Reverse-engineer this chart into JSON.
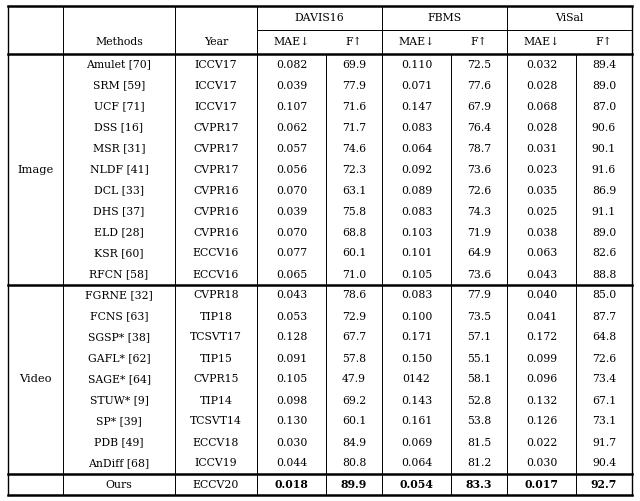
{
  "row_groups": [
    {
      "group_label": "Image",
      "rows": [
        [
          "Amulet [70]",
          "ICCV17",
          "0.082",
          "69.9",
          "0.110",
          "72.5",
          "0.032",
          "89.4"
        ],
        [
          "SRM [59]",
          "ICCV17",
          "0.039",
          "77.9",
          "0.071",
          "77.6",
          "0.028",
          "89.0"
        ],
        [
          "UCF [71]",
          "ICCV17",
          "0.107",
          "71.6",
          "0.147",
          "67.9",
          "0.068",
          "87.0"
        ],
        [
          "DSS [16]",
          "CVPR17",
          "0.062",
          "71.7",
          "0.083",
          "76.4",
          "0.028",
          "90.6"
        ],
        [
          "MSR [31]",
          "CVPR17",
          "0.057",
          "74.6",
          "0.064",
          "78.7",
          "0.031",
          "90.1"
        ],
        [
          "NLDF [41]",
          "CVPR17",
          "0.056",
          "72.3",
          "0.092",
          "73.6",
          "0.023",
          "91.6"
        ],
        [
          "DCL [33]",
          "CVPR16",
          "0.070",
          "63.1",
          "0.089",
          "72.6",
          "0.035",
          "86.9"
        ],
        [
          "DHS [37]",
          "CVPR16",
          "0.039",
          "75.8",
          "0.083",
          "74.3",
          "0.025",
          "91.1"
        ],
        [
          "ELD [28]",
          "CVPR16",
          "0.070",
          "68.8",
          "0.103",
          "71.9",
          "0.038",
          "89.0"
        ],
        [
          "KSR [60]",
          "ECCV16",
          "0.077",
          "60.1",
          "0.101",
          "64.9",
          "0.063",
          "82.6"
        ],
        [
          "RFCN [58]",
          "ECCV16",
          "0.065",
          "71.0",
          "0.105",
          "73.6",
          "0.043",
          "88.8"
        ]
      ]
    },
    {
      "group_label": "Video",
      "rows": [
        [
          "FGRNE [32]",
          "CVPR18",
          "0.043",
          "78.6",
          "0.083",
          "77.9",
          "0.040",
          "85.0"
        ],
        [
          "FCNS [63]",
          "TIP18",
          "0.053",
          "72.9",
          "0.100",
          "73.5",
          "0.041",
          "87.7"
        ],
        [
          "SGSP* [38]",
          "TCSVT17",
          "0.128",
          "67.7",
          "0.171",
          "57.1",
          "0.172",
          "64.8"
        ],
        [
          "GAFL* [62]",
          "TIP15",
          "0.091",
          "57.8",
          "0.150",
          "55.1",
          "0.099",
          "72.6"
        ],
        [
          "SAGE* [64]",
          "CVPR15",
          "0.105",
          "47.9",
          "0142",
          "58.1",
          "0.096",
          "73.4"
        ],
        [
          "STUW* [9]",
          "TIP14",
          "0.098",
          "69.2",
          "0.143",
          "52.8",
          "0.132",
          "67.1"
        ],
        [
          "SP* [39]",
          "TCSVT14",
          "0.130",
          "60.1",
          "0.161",
          "53.8",
          "0.126",
          "73.1"
        ],
        [
          "PDB [49]",
          "ECCV18",
          "0.030",
          "84.9",
          "0.069",
          "81.5",
          "0.022",
          "91.7"
        ],
        [
          "AnDiff [68]",
          "ICCV19",
          "0.044",
          "80.8",
          "0.064",
          "81.2",
          "0.030",
          "90.4"
        ]
      ]
    }
  ],
  "last_row": {
    "cells": [
      "Ours",
      "ECCV20",
      "0.018",
      "89.9",
      "0.054",
      "83.3",
      "0.017",
      "92.7"
    ],
    "bold": [
      false,
      false,
      true,
      true,
      true,
      true,
      true,
      true
    ]
  },
  "background_color": "#ffffff",
  "font_size": 7.8,
  "header_font_size": 7.8,
  "group_font_size": 8.2
}
